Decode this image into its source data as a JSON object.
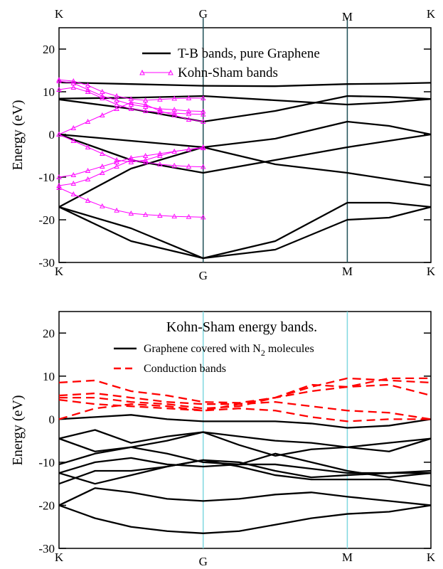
{
  "chart_data": [
    {
      "type": "line",
      "title": "",
      "xlabel": "",
      "ylabel": "Energy (eV)",
      "ylim": [
        -30,
        25
      ],
      "yticks": [
        -30,
        -20,
        -10,
        0,
        10,
        20
      ],
      "kpoints": [
        "K",
        "G",
        "M",
        "K"
      ],
      "kpoint_positions": [
        0,
        1,
        2,
        2.58
      ],
      "top_kpoint_labels": [
        "K",
        "G",
        "M",
        "K"
      ],
      "bottom_kpoint_labels": [
        "K",
        "G",
        "M",
        "K"
      ],
      "kpoint_line_color": "#1f4f57",
      "legend": {
        "placement": "top-center",
        "entries": [
          "T-B bands, pure Graphene",
          "Kohn-Sham bands"
        ]
      },
      "series": [
        {
          "name": "T-B bands, pure Graphene",
          "color": "#000000",
          "marker": "none",
          "values": [
            {
              "x": [
                0,
                0.5,
                1.0,
                1.5,
                2.0,
                2.29,
                2.58
              ],
              "y": [
                12.2,
                11.8,
                11.4,
                11.3,
                11.8,
                11.9,
                12.1
              ]
            },
            {
              "x": [
                0,
                0.5,
                1.0,
                1.5,
                2.0,
                2.29,
                2.58
              ],
              "y": [
                8.4,
                8.6,
                9.0,
                8.0,
                7.0,
                7.5,
                8.3
              ]
            },
            {
              "x": [
                0,
                0.5,
                1.0,
                1.5,
                2.0,
                2.29,
                2.58
              ],
              "y": [
                8.2,
                6.0,
                3.0,
                5.5,
                9.0,
                8.8,
                8.3
              ]
            },
            {
              "x": [
                0,
                0.5,
                1.0,
                1.5,
                2.0,
                2.29,
                2.58
              ],
              "y": [
                0,
                -1.5,
                -3.0,
                -1.0,
                3.0,
                2.0,
                0
              ]
            },
            {
              "x": [
                0,
                0.5,
                1.0,
                1.5,
                2.0,
                2.29,
                2.58
              ],
              "y": [
                0,
                -6.0,
                -9.0,
                -6.0,
                -3.0,
                -1.5,
                0
              ]
            },
            {
              "x": [
                0,
                0.5,
                1.0,
                1.5,
                2.0,
                2.29,
                2.58
              ],
              "y": [
                -17.0,
                -8.0,
                -3.0,
                -7.0,
                -9.0,
                -10.5,
                -12.0
              ]
            },
            {
              "x": [
                0,
                0.5,
                1.0,
                1.5,
                2.0,
                2.29,
                2.58
              ],
              "y": [
                -17.0,
                -22.0,
                -29.0,
                -25.0,
                -16.0,
                -16.0,
                -17.0
              ]
            },
            {
              "x": [
                0,
                0.5,
                1.0,
                1.5,
                2.0,
                2.29,
                2.58
              ],
              "y": [
                -17.0,
                -25.0,
                -29.0,
                -27.0,
                -20.0,
                -19.5,
                -17.0
              ]
            }
          ]
        },
        {
          "name": "Kohn-Sham bands",
          "color": "#ff00ff",
          "marker": "triangle",
          "values": [
            {
              "x": [
                0,
                0.1,
                0.2,
                0.3,
                0.4,
                0.5,
                0.6,
                0.7,
                0.8,
                0.9,
                1.0
              ],
              "y": [
                12.8,
                12.5,
                11.5,
                10.0,
                9.0,
                8.3,
                8.0,
                8.2,
                8.4,
                8.5,
                8.5
              ]
            },
            {
              "x": [
                0,
                0.1,
                0.2,
                0.3,
                0.4,
                0.5,
                0.6,
                0.7,
                0.8,
                0.9,
                1.0
              ],
              "y": [
                12.5,
                12.0,
                10.5,
                9.0,
                8.0,
                7.0,
                6.5,
                6.0,
                5.8,
                5.5,
                5.4
              ]
            },
            {
              "x": [
                0,
                0.1,
                0.2,
                0.3,
                0.4,
                0.5,
                0.6,
                0.7,
                0.8,
                0.9,
                1.0
              ],
              "y": [
                10.5,
                11.0,
                10.0,
                8.5,
                7.0,
                6.0,
                5.5,
                5.2,
                5.0,
                4.8,
                4.7
              ]
            },
            {
              "x": [
                0,
                0.1,
                0.2,
                0.3,
                0.4,
                0.5,
                0.6,
                0.7,
                0.8,
                0.9,
                1.0
              ],
              "y": [
                0,
                1.5,
                3.0,
                4.5,
                6.0,
                7.5,
                7.0,
                5.5,
                4.5,
                3.5,
                3.0
              ]
            },
            {
              "x": [
                0,
                0.1,
                0.2,
                0.3,
                0.4,
                0.5,
                0.6,
                0.7,
                0.8,
                0.9,
                1.0
              ],
              "y": [
                0,
                -1.5,
                -3.0,
                -4.5,
                -6.0,
                -6.5,
                -6.0,
                -5.0,
                -4.0,
                -3.5,
                -3.0
              ]
            },
            {
              "x": [
                0,
                0.1,
                0.2,
                0.3,
                0.4,
                0.5,
                0.6,
                0.7,
                0.8,
                0.9,
                1.0
              ],
              "y": [
                -10.0,
                -9.5,
                -8.5,
                -7.5,
                -6.5,
                -5.5,
                -5.0,
                -4.5,
                -4.0,
                -3.5,
                -3.2
              ]
            },
            {
              "x": [
                0,
                0.1,
                0.2,
                0.3,
                0.4,
                0.5,
                0.6,
                0.7,
                0.8,
                0.9,
                1.0
              ],
              "y": [
                -12.0,
                -11.5,
                -10.5,
                -9.0,
                -7.5,
                -6.0,
                -6.5,
                -7.0,
                -7.3,
                -7.5,
                -7.6
              ]
            },
            {
              "x": [
                0,
                0.1,
                0.2,
                0.3,
                0.4,
                0.5,
                0.6,
                0.7,
                0.8,
                0.9,
                1.0
              ],
              "y": [
                -12.5,
                -14.0,
                -15.5,
                -16.8,
                -17.8,
                -18.5,
                -18.8,
                -19.0,
                -19.2,
                -19.3,
                -19.4
              ]
            }
          ]
        }
      ]
    },
    {
      "type": "line",
      "title": "Kohn-Sham energy bands.",
      "xlabel": "",
      "ylabel": "Energy (eV)",
      "ylim": [
        -30,
        25
      ],
      "yticks": [
        -30,
        -20,
        -10,
        0,
        10,
        20
      ],
      "kpoints": [
        "K",
        "G",
        "M",
        "K"
      ],
      "kpoint_positions": [
        0,
        1,
        2,
        2.58
      ],
      "bottom_kpoint_labels": [
        "K",
        "G",
        "M",
        "K"
      ],
      "kpoint_line_color": "#7fd8e0",
      "legend": {
        "placement": "top-center",
        "entries": [
          "Graphene covered with N",
          "Conduction bands"
        ],
        "subscript": "2",
        "entry_suffix": " molecules"
      },
      "series": [
        {
          "name": "Graphene covered with N2 molecules",
          "color": "#000000",
          "style": "solid",
          "values": [
            {
              "x": [
                0,
                0.25,
                0.5,
                0.75,
                1.0,
                1.25,
                1.5,
                1.75,
                2.0,
                2.29,
                2.58
              ],
              "y": [
                0,
                0.5,
                1.0,
                0.0,
                -0.5,
                -0.5,
                -0.5,
                -1.0,
                -2.0,
                -1.5,
                0
              ]
            },
            {
              "x": [
                0,
                0.25,
                0.5,
                0.75,
                1.0,
                1.25,
                1.5,
                1.75,
                2.0,
                2.29,
                2.58
              ],
              "y": [
                -4.5,
                -2.5,
                -5.5,
                -4.0,
                -3.0,
                -4.0,
                -5.0,
                -5.5,
                -6.5,
                -5.5,
                -4.5
              ]
            },
            {
              "x": [
                0,
                0.25,
                0.5,
                0.75,
                1.0,
                1.25,
                1.5,
                1.75,
                2.0,
                2.29,
                2.58
              ],
              "y": [
                -4.5,
                -7.5,
                -6.5,
                -5.0,
                -3.0,
                -6.0,
                -8.5,
                -7.0,
                -6.5,
                -7.5,
                -4.5
              ]
            },
            {
              "x": [
                0,
                0.25,
                0.5,
                0.75,
                1.0,
                1.25,
                1.5,
                1.75,
                2.0,
                2.29,
                2.58
              ],
              "y": [
                -10.5,
                -8.0,
                -6.5,
                -8.0,
                -10.0,
                -10.5,
                -10.5,
                -11.5,
                -12.5,
                -12.5,
                -12.0
              ]
            },
            {
              "x": [
                0,
                0.25,
                0.5,
                0.75,
                1.0,
                1.25,
                1.5,
                1.75,
                2.0,
                2.29,
                2.58
              ],
              "y": [
                -12.5,
                -10.0,
                -9.0,
                -10.5,
                -11.0,
                -10.5,
                -8.0,
                -10.0,
                -12.0,
                -13.5,
                -12.5
              ]
            },
            {
              "x": [
                0,
                0.25,
                0.5,
                0.75,
                1.0,
                1.25,
                1.5,
                1.75,
                2.0,
                2.29,
                2.58
              ],
              "y": [
                -12.5,
                -15.0,
                -13.0,
                -11.0,
                -9.5,
                -10.0,
                -12.0,
                -13.5,
                -13.0,
                -12.5,
                -12.5
              ]
            },
            {
              "x": [
                0,
                0.25,
                0.5,
                0.75,
                1.0,
                1.25,
                1.5,
                1.75,
                2.0,
                2.29,
                2.58
              ],
              "y": [
                -15.0,
                -12.0,
                -12.0,
                -11.0,
                -9.5,
                -11.0,
                -13.0,
                -14.0,
                -14.0,
                -14.0,
                -15.5
              ]
            },
            {
              "x": [
                0,
                0.25,
                0.5,
                0.75,
                1.0,
                1.25,
                1.5,
                1.75,
                2.0,
                2.29,
                2.58
              ],
              "y": [
                -20.0,
                -16.0,
                -17.0,
                -18.5,
                -19.0,
                -18.5,
                -17.5,
                -17.0,
                -18.0,
                -19.0,
                -20.0
              ]
            },
            {
              "x": [
                0,
                0.25,
                0.5,
                0.75,
                1.0,
                1.25,
                1.5,
                1.75,
                2.0,
                2.29,
                2.58
              ],
              "y": [
                -20.0,
                -23.0,
                -25.0,
                -26.0,
                -26.5,
                -26.0,
                -24.5,
                -23.0,
                -22.0,
                -21.5,
                -20.0
              ]
            }
          ]
        },
        {
          "name": "Conduction bands",
          "color": "#ff0000",
          "style": "dashed",
          "values": [
            {
              "x": [
                0,
                0.25,
                0.5,
                0.75,
                1.0,
                1.25,
                1.5,
                1.75,
                2.0,
                2.29,
                2.58
              ],
              "y": [
                8.5,
                9.0,
                6.5,
                5.5,
                4.0,
                3.8,
                5.0,
                6.5,
                7.5,
                8.0,
                5.5
              ]
            },
            {
              "x": [
                0,
                0.25,
                0.5,
                0.75,
                1.0,
                1.25,
                1.5,
                1.75,
                2.0,
                2.29,
                2.58
              ],
              "y": [
                5.5,
                6.0,
                5.0,
                4.0,
                3.5,
                3.5,
                5.0,
                7.5,
                9.5,
                9.0,
                8.5
              ]
            },
            {
              "x": [
                0,
                0.25,
                0.5,
                0.75,
                1.0,
                1.25,
                1.5,
                1.75,
                2.0,
                2.29,
                2.58
              ],
              "y": [
                5.0,
                5.0,
                4.0,
                3.5,
                2.5,
                3.0,
                5.0,
                8.0,
                7.5,
                9.5,
                9.5
              ]
            },
            {
              "x": [
                0,
                0.25,
                0.5,
                0.75,
                1.0,
                1.25,
                1.5,
                1.75,
                2.0,
                2.29,
                2.58
              ],
              "y": [
                4.5,
                3.5,
                3.0,
                2.5,
                2.0,
                3.5,
                4.0,
                3.0,
                2.0,
                1.5,
                0
              ]
            },
            {
              "x": [
                0,
                0.25,
                0.5,
                0.75,
                1.0,
                1.25,
                1.5,
                1.75,
                2.0,
                2.29,
                2.58
              ],
              "y": [
                0,
                2.5,
                3.5,
                3.0,
                2.0,
                2.5,
                2.0,
                0.5,
                -0.5,
                0,
                0
              ]
            }
          ]
        }
      ]
    }
  ]
}
